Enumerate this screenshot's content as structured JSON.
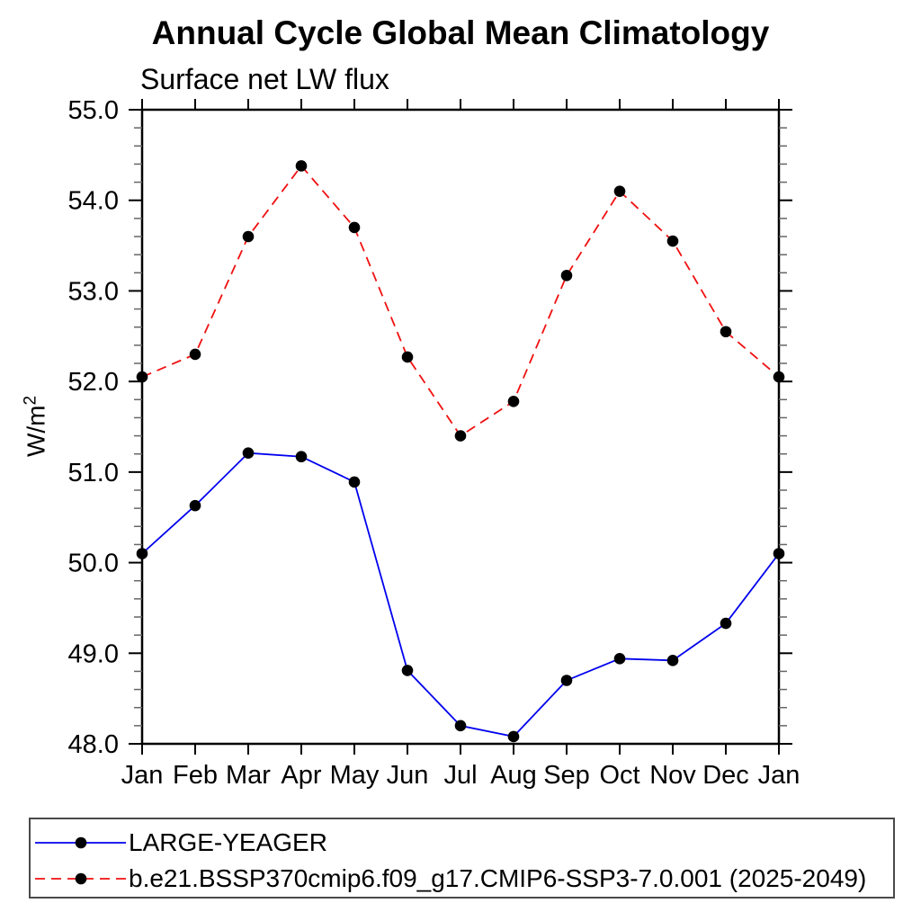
{
  "header": {
    "title": "Annual Cycle Global Mean Climatology",
    "subtitle": "Surface net LW flux"
  },
  "y_axis": {
    "label_base": "W/m",
    "label_sup": "2"
  },
  "chart_data": {
    "type": "line",
    "title": "Annual Cycle Global Mean Climatology",
    "subtitle": "Surface net LW flux",
    "xlabel": "",
    "ylabel": "W/m^2",
    "x_categories": [
      "Jan",
      "Feb",
      "Mar",
      "Apr",
      "May",
      "Jun",
      "Jul",
      "Aug",
      "Sep",
      "Oct",
      "Nov",
      "Dec",
      "Jan"
    ],
    "ylim": [
      48.0,
      55.0
    ],
    "y_major_step": 1.0,
    "y_minor_step": 0.2,
    "y_tick_labels": [
      "48.0",
      "49.0",
      "50.0",
      "51.0",
      "52.0",
      "53.0",
      "54.0",
      "55.0"
    ],
    "grid": false,
    "legend_position": "bottom",
    "axis_color": "#000000",
    "minor_tick_color": "#666666",
    "marker_color": "#000000",
    "series": [
      {
        "name": "LARGE-YEAGER",
        "color": "#0000ee",
        "line_style": "solid",
        "marker": "filled-circle",
        "values": [
          50.1,
          50.63,
          51.21,
          51.17,
          50.89,
          48.81,
          48.2,
          48.08,
          48.7,
          48.94,
          48.92,
          49.33,
          50.1
        ]
      },
      {
        "name": "b.e21.BSSP370cmip6.f09_g17.CMIP6-SSP3-7.0.001 (2025-2049)",
        "color": "#f01010",
        "line_style": "dashed",
        "marker": "filled-circle",
        "values": [
          52.05,
          52.3,
          53.6,
          54.38,
          53.7,
          52.27,
          51.4,
          51.78,
          53.17,
          54.1,
          53.55,
          52.55,
          52.05
        ]
      }
    ]
  }
}
